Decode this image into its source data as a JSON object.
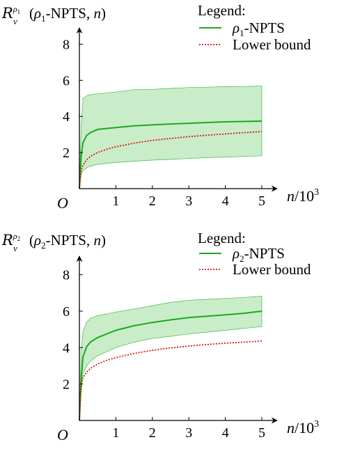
{
  "chart_data": [
    {
      "type": "line",
      "ylabel_math": "R",
      "ylabel_sup": "ρ1",
      "ylabel_sub": "ν",
      "ylabel_args": "(ρ1-NPTS, n)",
      "ylabel": "Rν^ρ1(ρ1-NPTS, n)",
      "xlabel": "n/10^3",
      "origin_label": "O",
      "legend_title": "Legend:",
      "legend_position": "top-right",
      "xlim": [
        0,
        5.3
      ],
      "ylim": [
        0,
        9.1
      ],
      "xticks": [
        "1",
        "2",
        "3",
        "4",
        "5"
      ],
      "yticks": [
        "2",
        "4",
        "6",
        "8"
      ],
      "series": [
        {
          "name": "ρ1-NPTS",
          "style": "solid",
          "color": "#1aaa1a",
          "x": [
            0,
            0.05,
            0.1,
            0.2,
            0.3,
            0.5,
            1,
            1.5,
            2,
            2.5,
            3,
            3.5,
            4,
            4.5,
            5
          ],
          "y": [
            0,
            1.8,
            2.55,
            2.95,
            3.1,
            3.28,
            3.38,
            3.48,
            3.53,
            3.58,
            3.62,
            3.66,
            3.7,
            3.72,
            3.74
          ],
          "band_upper": [
            0,
            3.5,
            5.0,
            5.15,
            5.2,
            5.25,
            5.35,
            5.48,
            5.5,
            5.55,
            5.6,
            5.62,
            5.65,
            5.66,
            5.68
          ],
          "band_lower": [
            0,
            0.8,
            1.0,
            1.15,
            1.25,
            1.35,
            1.45,
            1.52,
            1.58,
            1.62,
            1.67,
            1.72,
            1.75,
            1.78,
            1.82
          ]
        },
        {
          "name": "Lower bound",
          "style": "dotted",
          "color": "#dd1111",
          "x": [
            0,
            0.05,
            0.1,
            0.2,
            0.3,
            0.5,
            0.75,
            1,
            1.5,
            2,
            2.5,
            3,
            3.5,
            4,
            4.5,
            5
          ],
          "y": [
            0,
            1.05,
            1.3,
            1.6,
            1.78,
            2.0,
            2.18,
            2.32,
            2.52,
            2.67,
            2.78,
            2.88,
            2.96,
            3.03,
            3.1,
            3.16
          ]
        }
      ]
    },
    {
      "type": "line",
      "ylabel_math": "R",
      "ylabel_sup": "ρ2",
      "ylabel_sub": "ν",
      "ylabel_args": "(ρ2-NPTS, n)",
      "ylabel": "Rν^ρ2(ρ2-NPTS, n)",
      "xlabel": "n/10^3",
      "origin_label": "O",
      "legend_title": "Legend:",
      "legend_position": "top-right",
      "xlim": [
        0,
        5.3
      ],
      "ylim": [
        0,
        9.1
      ],
      "xticks": [
        "1",
        "2",
        "3",
        "4",
        "5"
      ],
      "yticks": [
        "2",
        "4",
        "6",
        "8"
      ],
      "series": [
        {
          "name": "ρ2-NPTS",
          "style": "solid",
          "color": "#1aaa1a",
          "x": [
            0,
            0.05,
            0.1,
            0.2,
            0.3,
            0.5,
            1,
            1.5,
            2,
            2.5,
            3,
            3.5,
            4,
            4.5,
            5
          ],
          "y": [
            0,
            2.3,
            3.5,
            4.05,
            4.3,
            4.55,
            4.95,
            5.2,
            5.38,
            5.52,
            5.65,
            5.72,
            5.8,
            5.88,
            6.0
          ],
          "band_upper": [
            0,
            3.8,
            4.9,
            5.4,
            5.6,
            5.75,
            5.95,
            6.12,
            6.3,
            6.48,
            6.6,
            6.65,
            6.7,
            6.75,
            6.82
          ],
          "band_lower": [
            0,
            1.5,
            2.6,
            3.0,
            3.25,
            3.55,
            4.0,
            4.3,
            4.5,
            4.62,
            4.75,
            4.85,
            4.95,
            5.05,
            5.15
          ]
        },
        {
          "name": "Lower bound",
          "style": "dotted",
          "color": "#dd1111",
          "x": [
            0,
            0.05,
            0.1,
            0.2,
            0.3,
            0.5,
            0.75,
            1,
            1.5,
            2,
            2.5,
            3,
            3.5,
            4,
            4.5,
            5
          ],
          "y": [
            0,
            2.0,
            2.35,
            2.65,
            2.85,
            3.1,
            3.3,
            3.45,
            3.68,
            3.85,
            3.98,
            4.08,
            4.17,
            4.24,
            4.3,
            4.36
          ]
        }
      ]
    }
  ]
}
